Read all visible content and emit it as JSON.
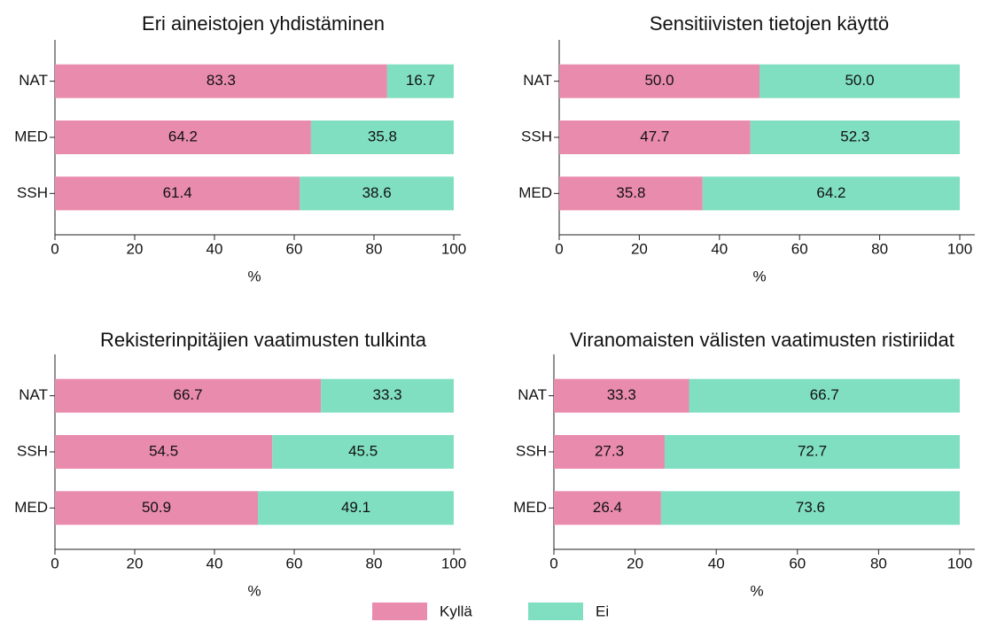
{
  "chart_data": [
    {
      "type": "bar",
      "orientation": "horizontal",
      "stacked": true,
      "title": "Eri aineistojen yhdistäminen",
      "xlabel": "%",
      "categories": [
        "NAT",
        "MED",
        "SSH"
      ],
      "series": [
        {
          "name": "Kyllä",
          "color": "#e98bac",
          "values": [
            83.3,
            64.2,
            61.4
          ]
        },
        {
          "name": "Ei",
          "color": "#80dfc0",
          "values": [
            16.7,
            35.8,
            38.6
          ]
        }
      ],
      "xlim": [
        0,
        100
      ],
      "xticks": [
        0,
        20,
        40,
        60,
        80,
        100
      ]
    },
    {
      "type": "bar",
      "orientation": "horizontal",
      "stacked": true,
      "title": "Sensitiivisten tietojen käyttö",
      "xlabel": "%",
      "categories": [
        "NAT",
        "SSH",
        "MED"
      ],
      "series": [
        {
          "name": "Kyllä",
          "color": "#e98bac",
          "values": [
            50,
            47.7,
            35.8
          ],
          "value_labels": [
            "50.0",
            "47.7",
            "35.8"
          ]
        },
        {
          "name": "Ei",
          "color": "#80dfc0",
          "values": [
            50,
            52.3,
            64.2
          ],
          "value_labels": [
            "50.0",
            "52.3",
            "64.2"
          ]
        }
      ],
      "xlim": [
        0,
        100
      ],
      "xticks": [
        0,
        20,
        40,
        60,
        80,
        100
      ]
    },
    {
      "type": "bar",
      "orientation": "horizontal",
      "stacked": true,
      "title": "Rekisterinpitäjien vaatimusten tulkinta",
      "xlabel": "%",
      "categories": [
        "NAT",
        "SSH",
        "MED"
      ],
      "series": [
        {
          "name": "Kyllä",
          "color": "#e98bac",
          "values": [
            66.7,
            54.5,
            50.9
          ]
        },
        {
          "name": "Ei",
          "color": "#80dfc0",
          "values": [
            33.3,
            45.5,
            49.1
          ]
        }
      ],
      "xlim": [
        0,
        100
      ],
      "xticks": [
        0,
        20,
        40,
        60,
        80,
        100
      ]
    },
    {
      "type": "bar",
      "orientation": "horizontal",
      "stacked": true,
      "title": "Viranomaisten välisten vaatimusten ristiriidat",
      "xlabel": "%",
      "categories": [
        "NAT",
        "SSH",
        "MED"
      ],
      "series": [
        {
          "name": "Kyllä",
          "color": "#e98bac",
          "values": [
            33.3,
            27.3,
            26.4
          ]
        },
        {
          "name": "Ei",
          "color": "#80dfc0",
          "values": [
            66.7,
            72.7,
            73.6
          ]
        }
      ],
      "xlim": [
        0,
        100
      ],
      "xticks": [
        0,
        20,
        40,
        60,
        80,
        100
      ]
    }
  ]
}
